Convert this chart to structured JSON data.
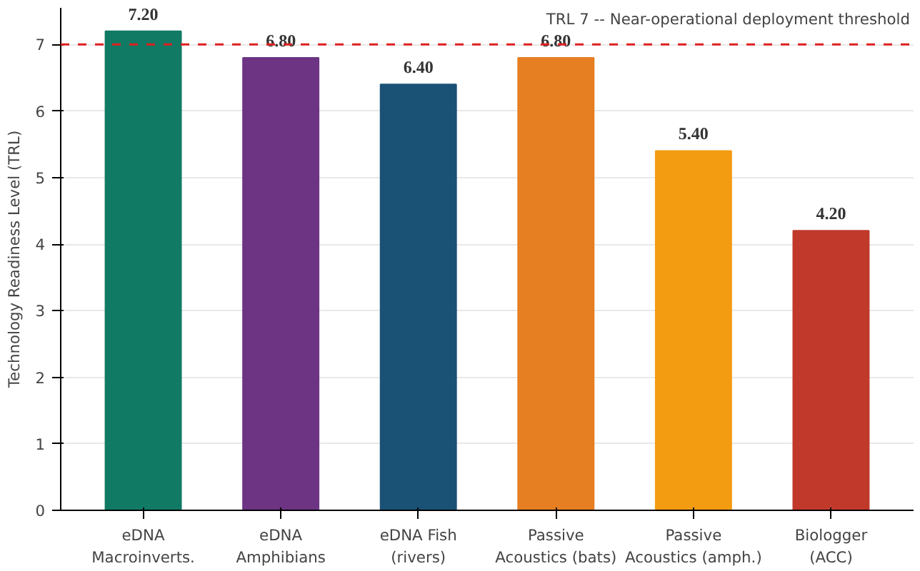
{
  "chart_data": {
    "type": "bar",
    "ylabel": "Technology Readiness Level (TRL)",
    "categories": [
      "eDNA\nMacroinverts.",
      "eDNA\nAmphibians",
      "eDNA Fish\n(rivers)",
      "Passive\nAcoustics (bats)",
      "Passive\nAcoustics (amph.)",
      "Biologger\n(ACC)"
    ],
    "values": [
      7.2,
      6.8,
      6.4,
      6.8,
      5.4,
      4.2
    ],
    "value_labels": [
      "7.20",
      "6.80",
      "6.40",
      "6.80",
      "5.40",
      "4.20"
    ],
    "colors": [
      "#117a65",
      "#6c3483",
      "#1a5276",
      "#e67e22",
      "#f39c12",
      "#c0392b"
    ],
    "ylim": [
      0,
      7.55
    ],
    "yticks": [
      0,
      1,
      2,
      3,
      4,
      5,
      6,
      7
    ],
    "grid": "y",
    "legend": "top right",
    "ref_lines": [
      {
        "axis": "y",
        "value": 7,
        "label": "TRL 7 -- Near-operational deployment threshold",
        "color": "#e02020",
        "line_style": "dashed"
      }
    ]
  }
}
